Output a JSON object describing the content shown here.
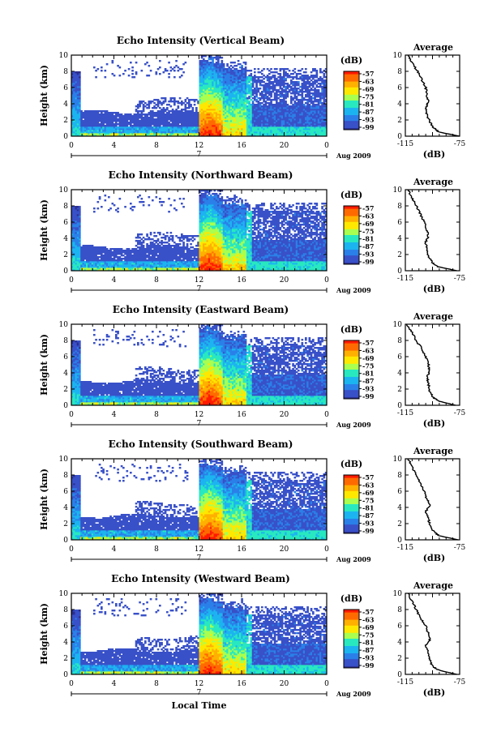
{
  "chart_data": [
    {
      "type": "heatmap",
      "title": "Echo Intensity (Vertical Beam)",
      "ylabel": "Height (km)",
      "yticks": [
        "0",
        "2",
        "4",
        "6",
        "8",
        "10"
      ],
      "xticks": [
        "0",
        "4",
        "8",
        "12",
        "16",
        "20",
        "0"
      ],
      "date_label": "7",
      "date_tail": "Aug 2009",
      "colorbar": {
        "unit": "(dB)",
        "labels": [
          "-57",
          "-63",
          "-69",
          "-75",
          "-81",
          "-87",
          "-93",
          "-99"
        ]
      },
      "profile": {
        "title": "Average",
        "xlabel": "(dB)",
        "xticks": [
          "-115",
          "-75"
        ],
        "yticks": [
          "0",
          "2",
          "4",
          "6",
          "8",
          "10"
        ],
        "xlim": [
          -115,
          -75
        ],
        "ylim": [
          0,
          10
        ],
        "x": [
          -75,
          -90,
          -94,
          -97,
          -99,
          -100,
          -98,
          -99,
          -100,
          -103,
          -106,
          -110,
          -113
        ],
        "y": [
          0,
          0.5,
          1,
          1.8,
          2.6,
          3.5,
          4.2,
          5.0,
          6.0,
          7.0,
          8.0,
          9.0,
          10
        ]
      }
    },
    {
      "type": "heatmap",
      "title": "Echo Intensity (Northward Beam)",
      "ylabel": "Height (km)",
      "yticks": [
        "0",
        "2",
        "4",
        "6",
        "8",
        "10"
      ],
      "xticks": [
        "0",
        "4",
        "8",
        "12",
        "16",
        "20",
        "0"
      ],
      "date_label": "7",
      "date_tail": "Aug 2009",
      "colorbar": {
        "unit": "(dB)",
        "labels": [
          "-57",
          "-63",
          "-69",
          "-75",
          "-81",
          "-87",
          "-93",
          "-99"
        ]
      },
      "profile": {
        "title": "Average",
        "xlabel": "(dB)",
        "xticks": [
          "-115",
          "-75"
        ],
        "yticks": [
          "0",
          "2",
          "4",
          "6",
          "8",
          "10"
        ],
        "xlim": [
          -115,
          -75
        ],
        "ylim": [
          0,
          10
        ],
        "x": [
          -77,
          -91,
          -95,
          -98,
          -99,
          -100,
          -98,
          -99,
          -101,
          -104,
          -107,
          -110,
          -113
        ],
        "y": [
          0,
          0.5,
          1,
          1.8,
          2.6,
          3.5,
          4.2,
          5.0,
          6.0,
          7.0,
          8.0,
          9.0,
          10
        ]
      }
    },
    {
      "type": "heatmap",
      "title": "Echo Intensity (Eastward Beam)",
      "ylabel": "Height (km)",
      "yticks": [
        "0",
        "2",
        "4",
        "6",
        "8",
        "10"
      ],
      "xticks": [
        "0",
        "4",
        "8",
        "12",
        "16",
        "20",
        "0"
      ],
      "date_label": "7",
      "date_tail": "Aug 2009",
      "colorbar": {
        "unit": "(dB)",
        "labels": [
          "-57",
          "-63",
          "-69",
          "-75",
          "-81",
          "-87",
          "-93",
          "-99"
        ]
      },
      "profile": {
        "title": "Average",
        "xlabel": "(dB)",
        "xticks": [
          "-115",
          "-75"
        ],
        "yticks": [
          "0",
          "2",
          "4",
          "6",
          "8",
          "10"
        ],
        "xlim": [
          -115,
          -75
        ],
        "ylim": [
          0,
          10
        ],
        "x": [
          -78,
          -90,
          -95,
          -97,
          -98,
          -99,
          -97,
          -98,
          -100,
          -103,
          -107,
          -110,
          -114
        ],
        "y": [
          0,
          0.5,
          1,
          1.8,
          2.6,
          3.5,
          4.2,
          5.0,
          6.0,
          7.0,
          8.0,
          9.0,
          10
        ]
      }
    },
    {
      "type": "heatmap",
      "title": "Echo Intensity (Southward Beam)",
      "ylabel": "Height (km)",
      "yticks": [
        "0",
        "2",
        "4",
        "6",
        "8",
        "10"
      ],
      "xticks": [
        "0",
        "4",
        "8",
        "12",
        "16",
        "20",
        "0"
      ],
      "date_label": "7",
      "date_tail": "Aug 2009",
      "colorbar": {
        "unit": "(dB)",
        "labels": [
          "-57",
          "-63",
          "-69",
          "-75",
          "-81",
          "-87",
          "-93",
          "-99"
        ]
      },
      "profile": {
        "title": "Average",
        "xlabel": "(dB)",
        "xticks": [
          "-115",
          "-75"
        ],
        "yticks": [
          "0",
          "2",
          "4",
          "6",
          "8",
          "10"
        ],
        "xlim": [
          -115,
          -75
        ],
        "ylim": [
          0,
          10
        ],
        "x": [
          -76,
          -90,
          -94,
          -97,
          -98,
          -100,
          -97,
          -99,
          -101,
          -104,
          -107,
          -110,
          -113
        ],
        "y": [
          0,
          0.5,
          1,
          1.8,
          2.6,
          3.5,
          4.2,
          5.0,
          6.0,
          7.0,
          8.0,
          9.0,
          10
        ]
      }
    },
    {
      "type": "heatmap",
      "title": "Echo Intensity (Westward Beam)",
      "ylabel": "Height (km)",
      "yticks": [
        "0",
        "2",
        "4",
        "6",
        "8",
        "10"
      ],
      "xticks": [
        "0",
        "4",
        "8",
        "12",
        "16",
        "20",
        "0"
      ],
      "date_label": "7",
      "date_tail": "Aug 2009",
      "xlabel": "Local Time",
      "colorbar": {
        "unit": "(dB)",
        "labels": [
          "-57",
          "-63",
          "-69",
          "-75",
          "-81",
          "-87",
          "-93",
          "-99"
        ]
      },
      "profile": {
        "title": "Average",
        "xlabel": "(dB)",
        "xticks": [
          "-115",
          "-75"
        ],
        "yticks": [
          "0",
          "2",
          "4",
          "6",
          "8",
          "10"
        ],
        "xlim": [
          -115,
          -75
        ],
        "ylim": [
          0,
          10
        ],
        "x": [
          -77,
          -90,
          -95,
          -97,
          -98,
          -100,
          -97,
          -98,
          -100,
          -104,
          -107,
          -110,
          -113
        ],
        "y": [
          0,
          0.5,
          1,
          1.8,
          2.6,
          3.5,
          4.2,
          5.0,
          6.0,
          7.0,
          8.0,
          9.0,
          10
        ]
      }
    }
  ],
  "colors": {
    "scale": [
      "#ff1a00",
      "#ff6a00",
      "#ffb000",
      "#ffe800",
      "#a8ff50",
      "#28e8c0",
      "#1cb4f0",
      "#2a80e8",
      "#3850c8",
      "#2c2e8c"
    ]
  }
}
